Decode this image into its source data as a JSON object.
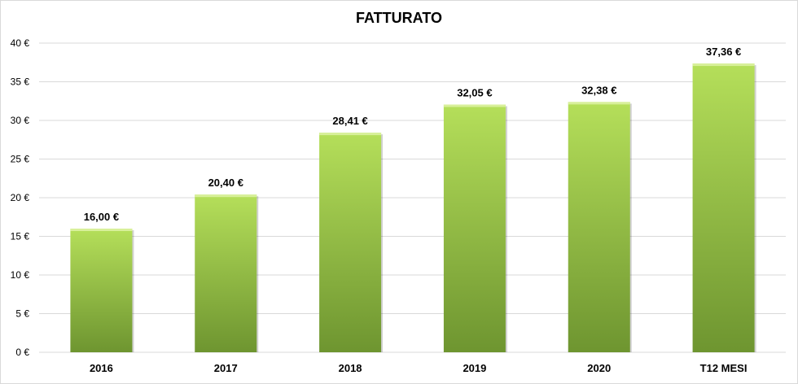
{
  "chart_data": {
    "type": "bar",
    "title": "FATTURATO",
    "xlabel": "",
    "ylabel": "",
    "categories": [
      "2016",
      "2017",
      "2018",
      "2019",
      "2020",
      "T12 MESI"
    ],
    "values": [
      16.0,
      20.4,
      28.41,
      32.05,
      32.38,
      37.36
    ],
    "data_labels": [
      "16,00 €",
      "20,40 €",
      "28,41 €",
      "32,05 €",
      "32,38 €",
      "37,36 €"
    ],
    "ylim": [
      0,
      40
    ],
    "y_ticks": [
      0,
      5,
      10,
      15,
      20,
      25,
      30,
      35,
      40
    ],
    "y_tick_labels": [
      "0 €",
      "5 €",
      "10 €",
      "15 €",
      "20 €",
      "25 €",
      "30 €",
      "35 €",
      "40 €"
    ],
    "grid": true,
    "legend": "none",
    "colors": {
      "bar_light": "#b5df5a",
      "bar_dark": "#6e9530",
      "bar_top": "#d8f09a",
      "grid": "#d9d9d9"
    }
  }
}
